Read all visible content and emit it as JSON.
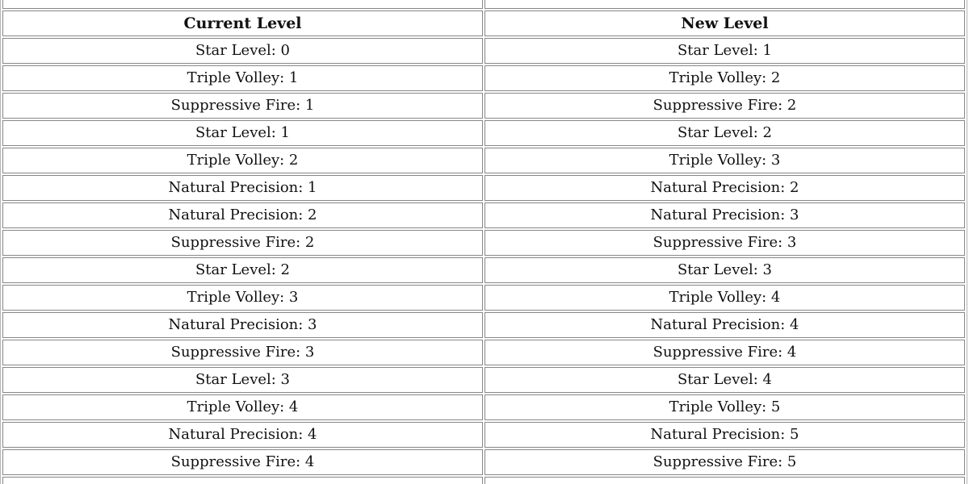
{
  "table": {
    "headers": [
      "Current Level",
      "New Level"
    ],
    "rows": [
      [
        "Star Level: 0",
        "Star Level: 1"
      ],
      [
        "Triple Volley: 1",
        "Triple Volley: 2"
      ],
      [
        "Suppressive Fire: 1",
        "Suppressive Fire: 2"
      ],
      [
        "Star Level: 1",
        "Star Level: 2"
      ],
      [
        "Triple Volley: 2",
        "Triple Volley: 3"
      ],
      [
        "Natural Precision: 1",
        "Natural Precision: 2"
      ],
      [
        "Natural Precision: 2",
        "Natural Precision: 3"
      ],
      [
        "Suppressive Fire: 2",
        "Suppressive Fire: 3"
      ],
      [
        "Star Level: 2",
        "Star Level: 3"
      ],
      [
        "Triple Volley: 3",
        "Triple Volley: 4"
      ],
      [
        "Natural Precision: 3",
        "Natural Precision: 4"
      ],
      [
        "Suppressive Fire: 3",
        "Suppressive Fire: 4"
      ],
      [
        "Star Level: 3",
        "Star Level: 4"
      ],
      [
        "Triple Volley: 4",
        "Triple Volley: 5"
      ],
      [
        "Natural Precision: 4",
        "Natural Precision: 5"
      ],
      [
        "Suppressive Fire: 4",
        "Suppressive Fire: 5"
      ]
    ]
  },
  "colors": {
    "background": "#ffffff",
    "text": "#111111",
    "cell_border": "#878787",
    "table_border": "#b4b4b4"
  }
}
